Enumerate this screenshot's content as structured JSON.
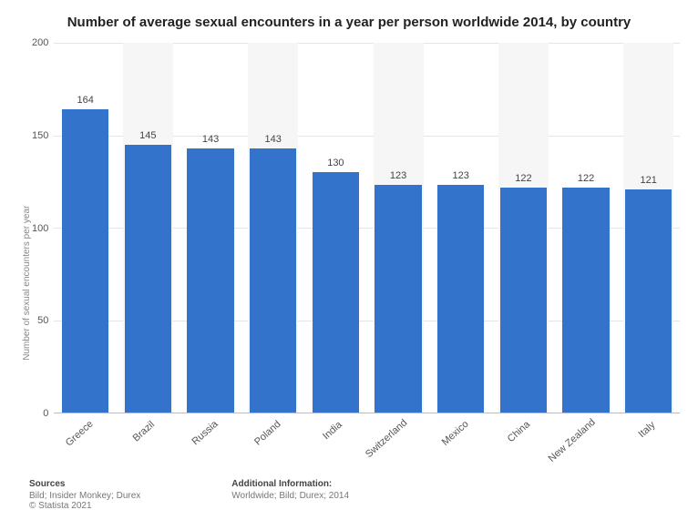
{
  "chart": {
    "type": "bar",
    "title": "Number of average sexual encounters in a year per person worldwide 2014, by country",
    "ylabel": "Number of sexual encounters per year",
    "ylim": [
      0,
      200
    ],
    "yticks": [
      0,
      50,
      100,
      150,
      200
    ],
    "categories": [
      "Greece",
      "Brazil",
      "Russia",
      "Poland",
      "India",
      "Switzerland",
      "Mexico",
      "China",
      "New Zealand",
      "Italy"
    ],
    "values": [
      164,
      145,
      143,
      143,
      130,
      123,
      123,
      122,
      122,
      121
    ],
    "bar_color": "#3373cc",
    "alt_bg_color": "#f6f6f6",
    "grid_color": "#e5e5e5",
    "background_color": "#ffffff",
    "title_fontsize": 15,
    "label_fontsize": 11,
    "value_fontsize": 11,
    "bar_width": 0.75
  },
  "footer": {
    "sources_heading": "Sources",
    "sources_line1": "Bild; Insider Monkey; Durex",
    "sources_line2": "© Statista 2021",
    "addl_heading": "Additional Information:",
    "addl_line1": "Worldwide; Bild; Durex; 2014"
  }
}
